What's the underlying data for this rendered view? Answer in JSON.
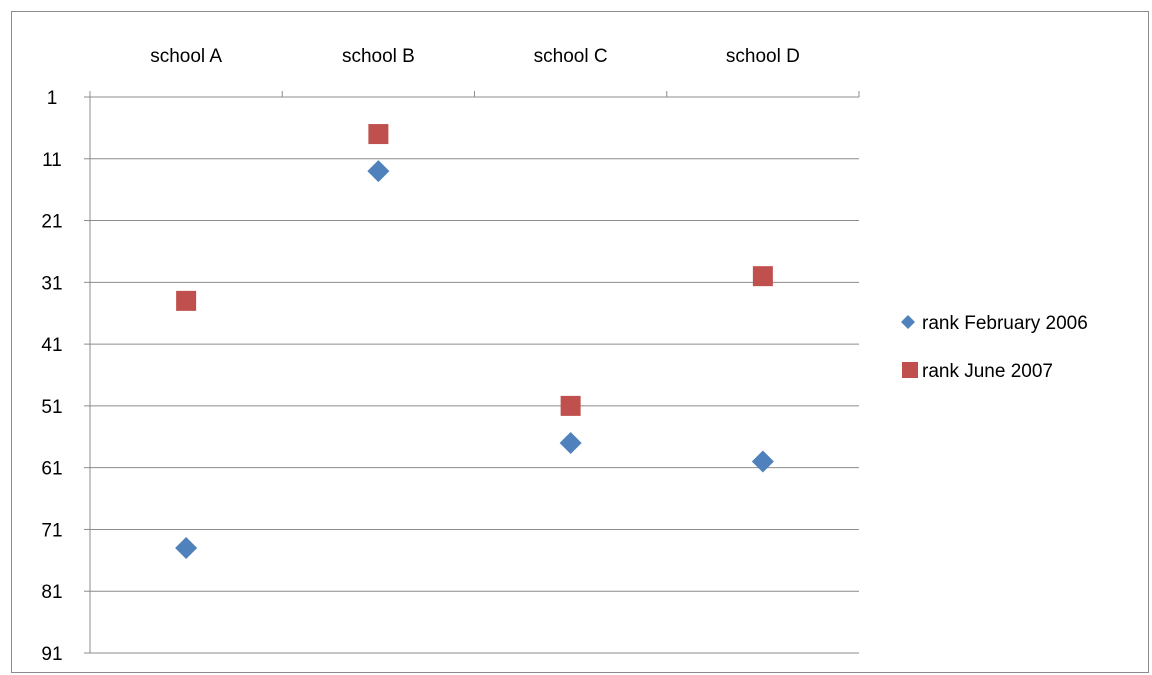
{
  "chart_data": {
    "type": "scatter",
    "categories": [
      "school A",
      "school B",
      "school C",
      "school D"
    ],
    "y_ticks": [
      "1",
      "11",
      "21",
      "31",
      "41",
      "51",
      "61",
      "71",
      "81",
      "91"
    ],
    "ylim": [
      1,
      91
    ],
    "y_reversed": true,
    "grid": true,
    "legend_position": "right",
    "x_axis_position": "top",
    "series": [
      {
        "name": "rank February 2006",
        "marker": "diamond",
        "color": "#4f81bd",
        "values": [
          74,
          13,
          57,
          60
        ]
      },
      {
        "name": "rank June 2007",
        "marker": "square",
        "color": "#c0504d",
        "values": [
          34,
          7,
          51,
          30
        ]
      }
    ]
  }
}
